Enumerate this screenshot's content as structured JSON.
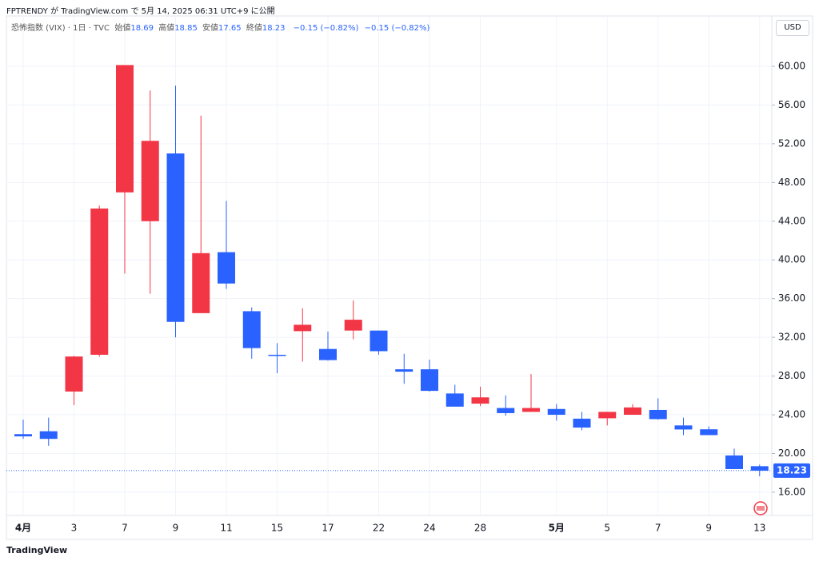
{
  "chart_data": {
    "type": "candlestick",
    "title": "FPTRENDY が TradingView.com で 5月 14, 2025 06:31 UTC+9 に公開",
    "symbol": "恐怖指数 (VIX) · 1日 · TVC",
    "ohlc_labels": [
      "始値",
      "高値",
      "安値",
      "終値"
    ],
    "change": "−0.15 (−0.82%)",
    "currency": "USD",
    "brand": "TradingView",
    "categories": [
      "4月",
      null,
      "3",
      null,
      "7",
      null,
      "9",
      null,
      "11",
      null,
      "15",
      null,
      "17",
      null,
      "22",
      null,
      "24",
      null,
      "28",
      null,
      null,
      "5月",
      null,
      "5",
      null,
      "7",
      null,
      "9",
      null,
      "13"
    ],
    "open": [
      22.0,
      22.3,
      26.4,
      30.2,
      60.13,
      44.0,
      51.0,
      34.5,
      40.8,
      34.7,
      30.2,
      33.3,
      30.8,
      32.7,
      32.7,
      28.7,
      28.7,
      26.2,
      25.8,
      24.7,
      24.3,
      24.0,
      23.6,
      24.3,
      24.0,
      24.5,
      22.9,
      22.5,
      19.8,
      18.69
    ],
    "high": [
      23.5,
      23.7,
      30.1,
      45.6,
      60.13,
      57.5,
      58.0,
      54.9,
      46.1,
      35.1,
      31.4,
      35.0,
      32.6,
      35.8,
      32.7,
      30.3,
      29.7,
      27.1,
      26.9,
      26.0,
      28.2,
      25.1,
      24.3,
      24.3,
      25.1,
      25.7,
      23.7,
      22.8,
      20.5,
      18.85
    ],
    "low": [
      21.5,
      20.8,
      25.0,
      30.0,
      38.58,
      36.5,
      32.0,
      34.5,
      37.0,
      29.8,
      28.3,
      29.5,
      29.6,
      31.8,
      30.2,
      27.2,
      26.4,
      24.9,
      24.9,
      23.9,
      24.3,
      23.4,
      22.4,
      22.9,
      24.0,
      23.5,
      21.9,
      21.9,
      18.4,
      17.65
    ],
    "close": [
      21.77,
      21.51,
      30.02,
      45.31,
      46.98,
      52.3,
      33.6,
      40.7,
      37.56,
      30.89,
      30.12,
      32.64,
      29.65,
      33.82,
      30.57,
      28.45,
      26.47,
      24.84,
      25.15,
      24.17,
      24.7,
      24.6,
      22.68,
      23.64,
      24.76,
      23.55,
      22.48,
      21.9,
      18.39,
      18.23
    ],
    "colors": [
      "#2962ff",
      "#2962ff",
      "#f23645",
      "#f23645",
      "#f23645",
      "#f23645",
      "#2962ff",
      "#f23645",
      "#2962ff",
      "#2962ff",
      "#2962ff",
      "#f23645",
      "#2962ff",
      "#f23645",
      "#2962ff",
      "#2962ff",
      "#2962ff",
      "#2962ff",
      "#f23645",
      "#2962ff",
      "#f23645",
      "#2962ff",
      "#2962ff",
      "#f23645",
      "#f23645",
      "#2962ff",
      "#2962ff",
      "#2962ff",
      "#2962ff",
      "#2962ff"
    ],
    "ylim": [
      13.6,
      65.2
    ],
    "yticks": [
      {
        "value": 16,
        "label": "16.00"
      },
      {
        "value": 20,
        "label": "20.00"
      },
      {
        "value": 24,
        "label": "24.00"
      },
      {
        "value": 28,
        "label": "28.00"
      },
      {
        "value": 32,
        "label": "32.00"
      },
      {
        "value": 36,
        "label": "36.00"
      },
      {
        "value": 40,
        "label": "40.00"
      },
      {
        "value": 44,
        "label": "44.00"
      },
      {
        "value": 48,
        "label": "48.00"
      },
      {
        "value": 52,
        "label": "52.00"
      },
      {
        "value": 56,
        "label": "56.00"
      },
      {
        "value": 60,
        "label": "60.00"
      }
    ],
    "grid": true
  }
}
